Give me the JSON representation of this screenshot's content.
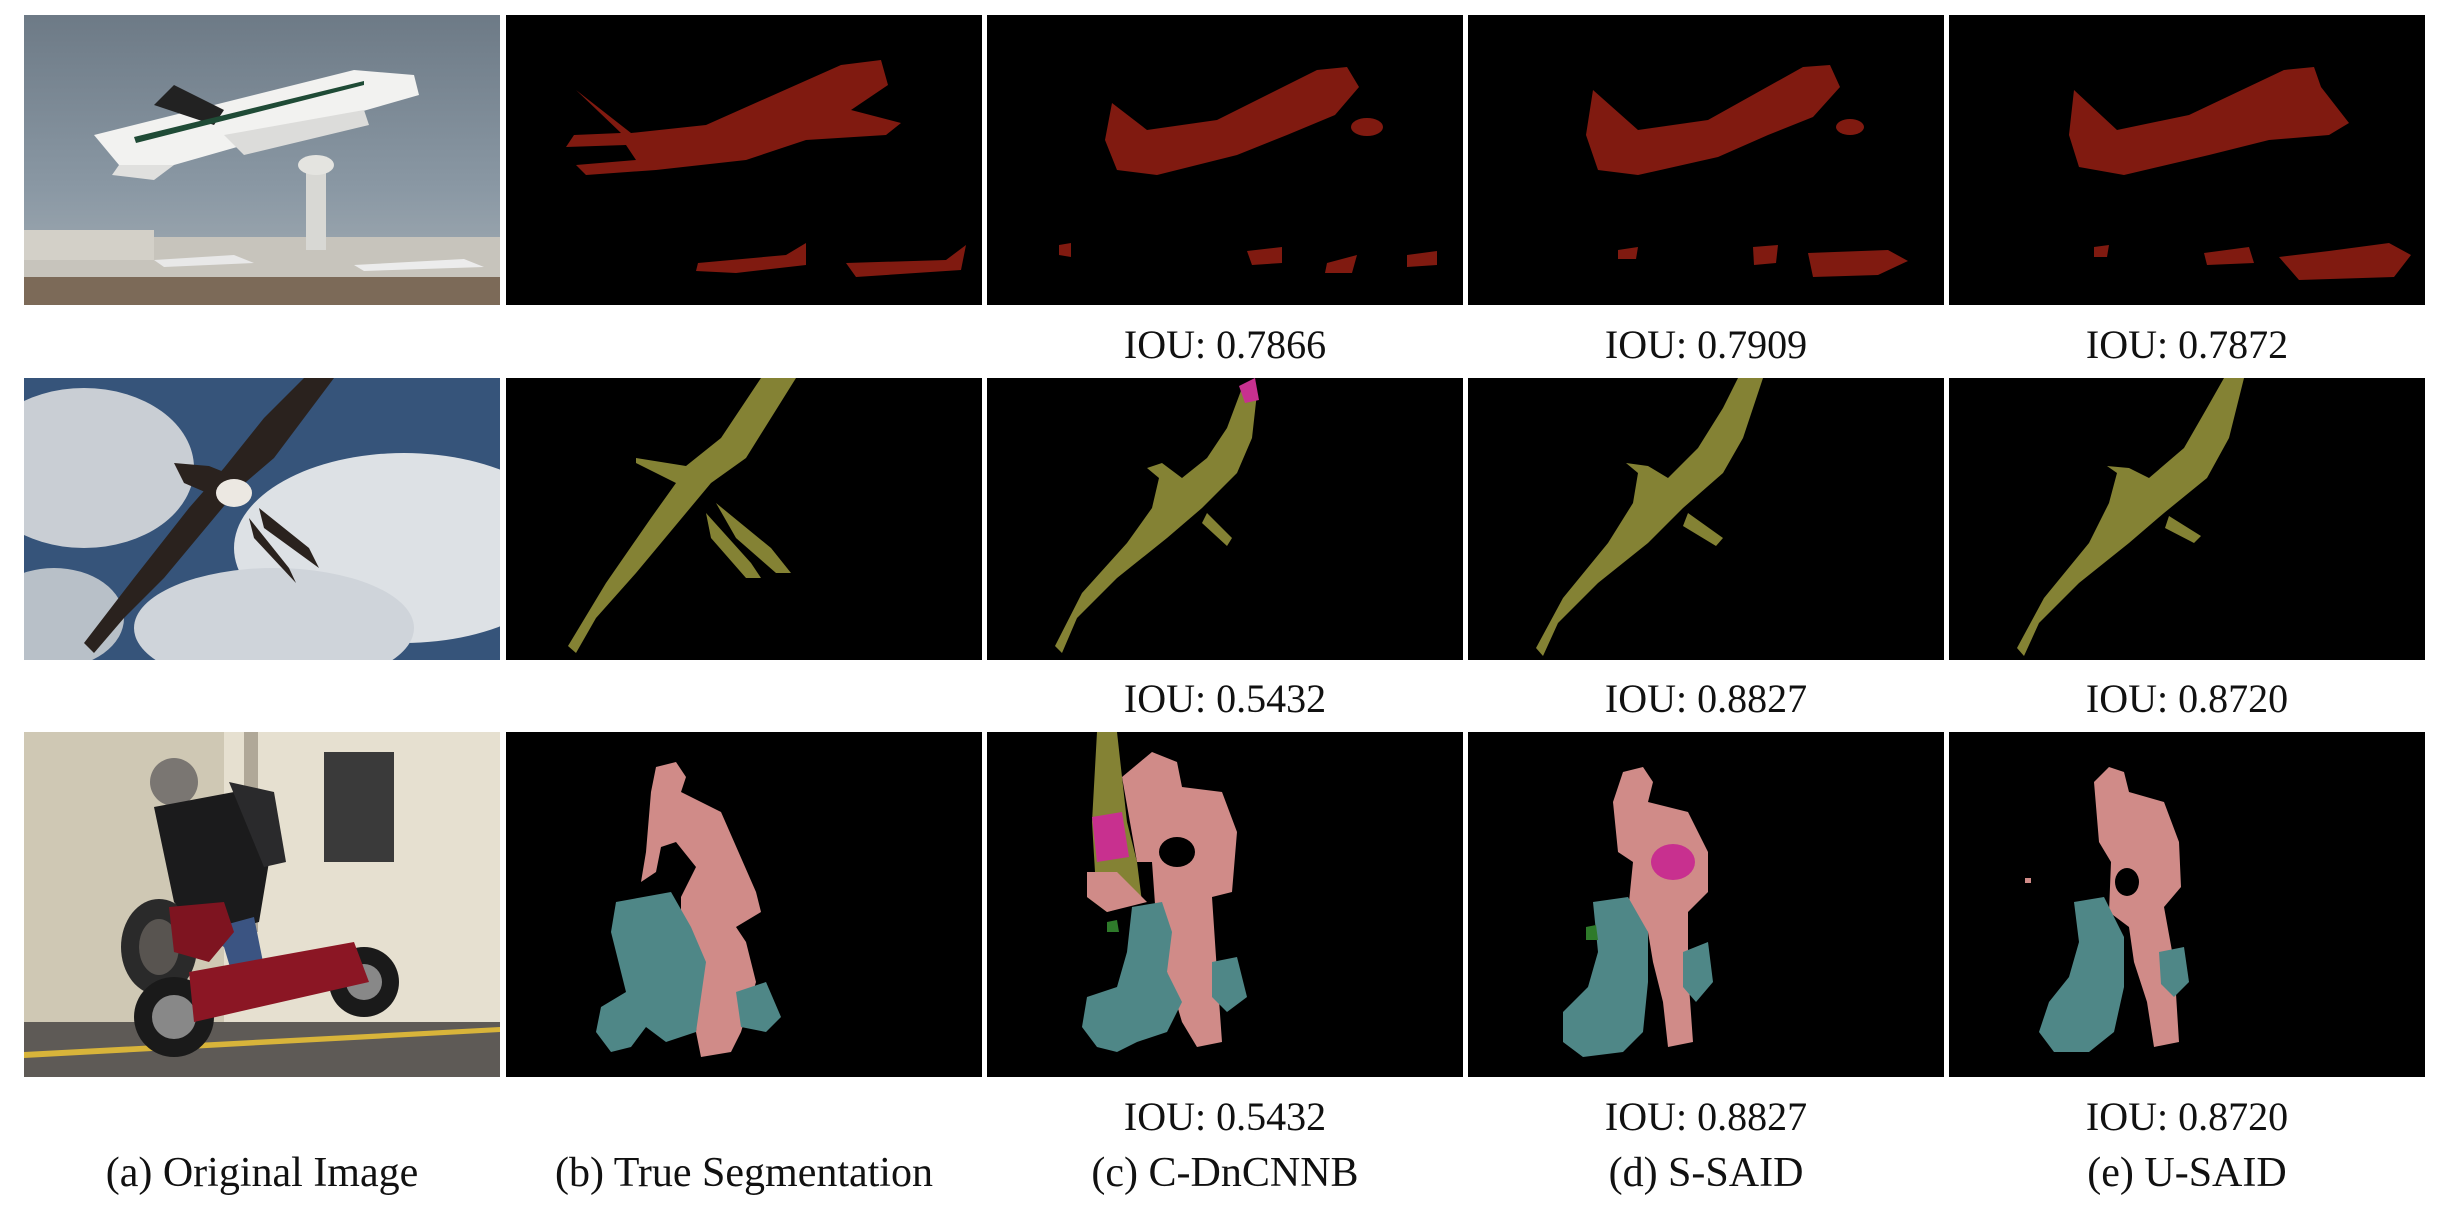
{
  "columns": [
    {
      "caption": "(a) Original Image"
    },
    {
      "caption": "(b) True Segmentation"
    },
    {
      "caption": "(c) C-DnCNNB"
    },
    {
      "caption": "(d) S-SAID"
    },
    {
      "caption": "(e) U-SAID"
    }
  ],
  "rows": [
    {
      "subject": "airplane",
      "iou": {
        "c_dncnnb": "IOU: 0.7866",
        "s_said": "IOU: 0.7909",
        "u_said": "IOU: 0.7872"
      }
    },
    {
      "subject": "bird",
      "iou": {
        "c_dncnnb": "IOU: 0.5432",
        "s_said": "IOU: 0.8827",
        "u_said": "IOU: 0.8720"
      }
    },
    {
      "subject": "person-motorbike",
      "iou": {
        "c_dncnnb": "IOU: 0.5432",
        "s_said": "IOU: 0.8827",
        "u_said": "IOU: 0.8720"
      }
    }
  ],
  "colors": {
    "mask_background": "#000000",
    "airplane": "#801a10",
    "bird": "#848234",
    "person": "#d08b88",
    "motorbike": "#4f8787",
    "error_magenta": "#c8308f",
    "error_green": "#2e7a2a"
  }
}
